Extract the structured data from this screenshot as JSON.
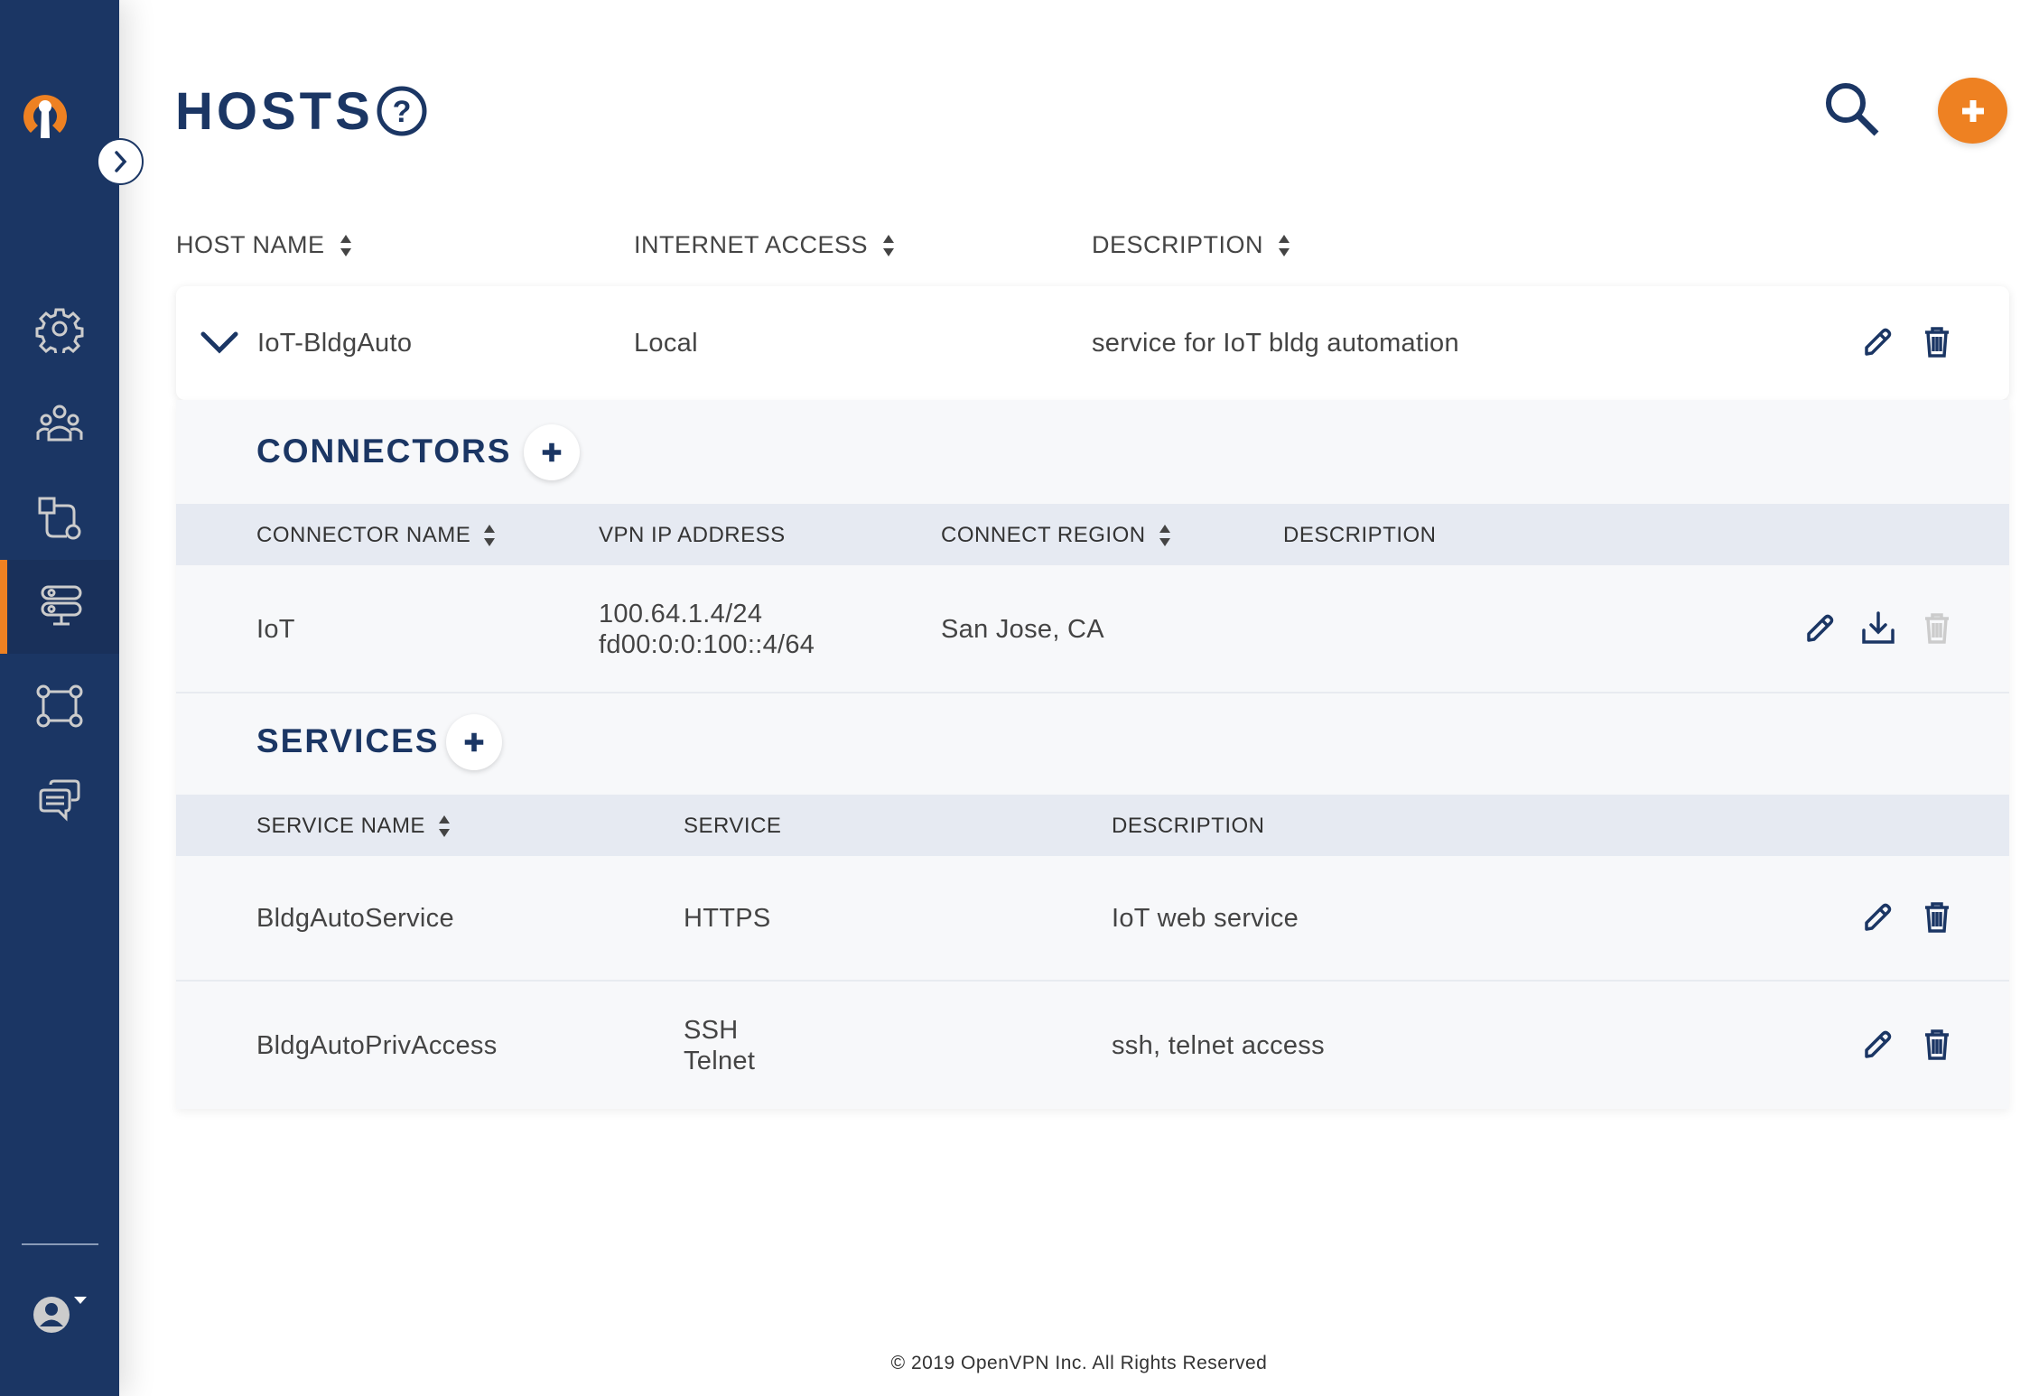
{
  "colors": {
    "navy": "#1b3664",
    "orange": "#ee8122",
    "band": "#e6eaf2",
    "disabled": "#cccccc"
  },
  "sidebar": {
    "logo": "openvpn-logo",
    "expand_icon": "chevron-right-icon",
    "items": [
      {
        "icon": "gear-icon",
        "active": false
      },
      {
        "icon": "users-icon",
        "active": false
      },
      {
        "icon": "network-icon",
        "active": false
      },
      {
        "icon": "hosts-icon",
        "active": true
      },
      {
        "icon": "topology-icon",
        "active": false
      },
      {
        "icon": "chat-icon",
        "active": false
      }
    ],
    "user_icon": "user-dropdown-icon"
  },
  "header": {
    "title": "HOSTS",
    "help_icon": "question-circle-icon",
    "search_icon": "search-icon",
    "add_icon": "plus-icon"
  },
  "hosts_table": {
    "columns": [
      "HOST NAME",
      "INTERNET ACCESS",
      "DESCRIPTION"
    ],
    "rows": [
      {
        "name": "IoT-BldgAuto",
        "internet_access": "Local",
        "description": "service for IoT bldg automation",
        "expanded": true
      }
    ]
  },
  "connectors": {
    "title": "CONNECTORS",
    "columns": [
      "CONNECTOR NAME",
      "VPN IP ADDRESS",
      "CONNECT REGION",
      "DESCRIPTION"
    ],
    "rows": [
      {
        "name": "IoT",
        "ipv4": "100.64.1.4/24",
        "ipv6": "fd00:0:0:100::4/64",
        "region": "San Jose, CA",
        "description": ""
      }
    ]
  },
  "services": {
    "title": "SERVICES",
    "columns": [
      "SERVICE NAME",
      "SERVICE",
      "DESCRIPTION"
    ],
    "rows": [
      {
        "name": "BldgAutoService",
        "service": [
          "HTTPS"
        ],
        "description": "IoT web service"
      },
      {
        "name": "BldgAutoPrivAccess",
        "service": [
          "SSH",
          "Telnet"
        ],
        "description": "ssh, telnet access"
      }
    ]
  },
  "footer": "© 2019 OpenVPN Inc. All Rights Reserved"
}
